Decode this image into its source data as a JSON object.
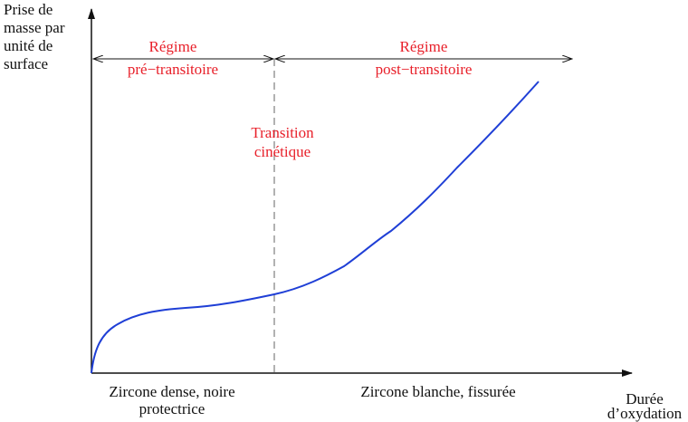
{
  "y_axis_label": [
    "Prise de",
    "masse par",
    "unité de",
    "surface"
  ],
  "x_axis_label": [
    "Durée",
    "d’oxydation"
  ],
  "regimes": [
    {
      "lines": [
        "Régime",
        "pré−transitoire"
      ]
    },
    {
      "lines": [
        "Régime",
        "post−transitoire"
      ]
    }
  ],
  "transition_label": [
    "Transition",
    "cinétique"
  ],
  "zones": [
    {
      "lines": [
        "Zircone dense, noire",
        "protectrice"
      ]
    },
    {
      "lines": [
        "Zircone blanche, fissurée"
      ]
    }
  ]
}
